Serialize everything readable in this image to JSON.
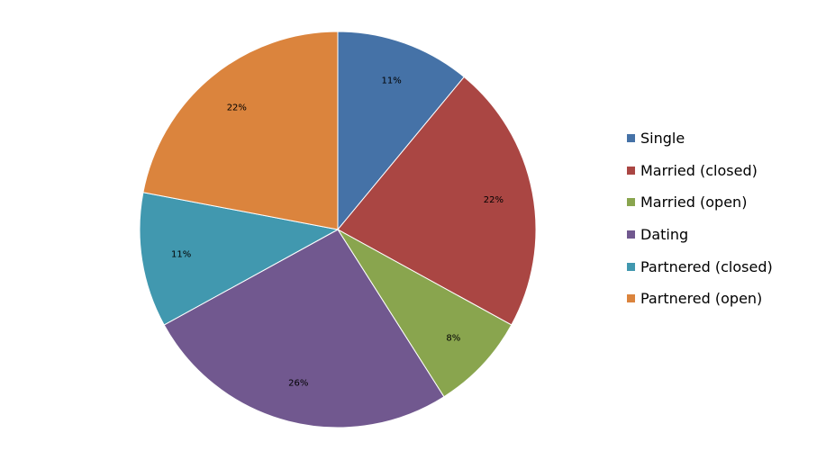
{
  "chart_data": {
    "type": "pie",
    "title": "",
    "categories": [
      "Single",
      "Married (closed)",
      "Married (open)",
      "Dating",
      "Partnered (closed)",
      "Partnered (open)"
    ],
    "values": [
      11,
      22,
      8,
      26,
      11,
      22
    ],
    "labels": [
      "11%",
      "22%",
      "8%",
      "26%",
      "11%",
      "22%"
    ],
    "colors": [
      "#4572A7",
      "#AA4643",
      "#89A54E",
      "#71588F",
      "#4198AF",
      "#DB843D"
    ],
    "legend_position": "right"
  }
}
